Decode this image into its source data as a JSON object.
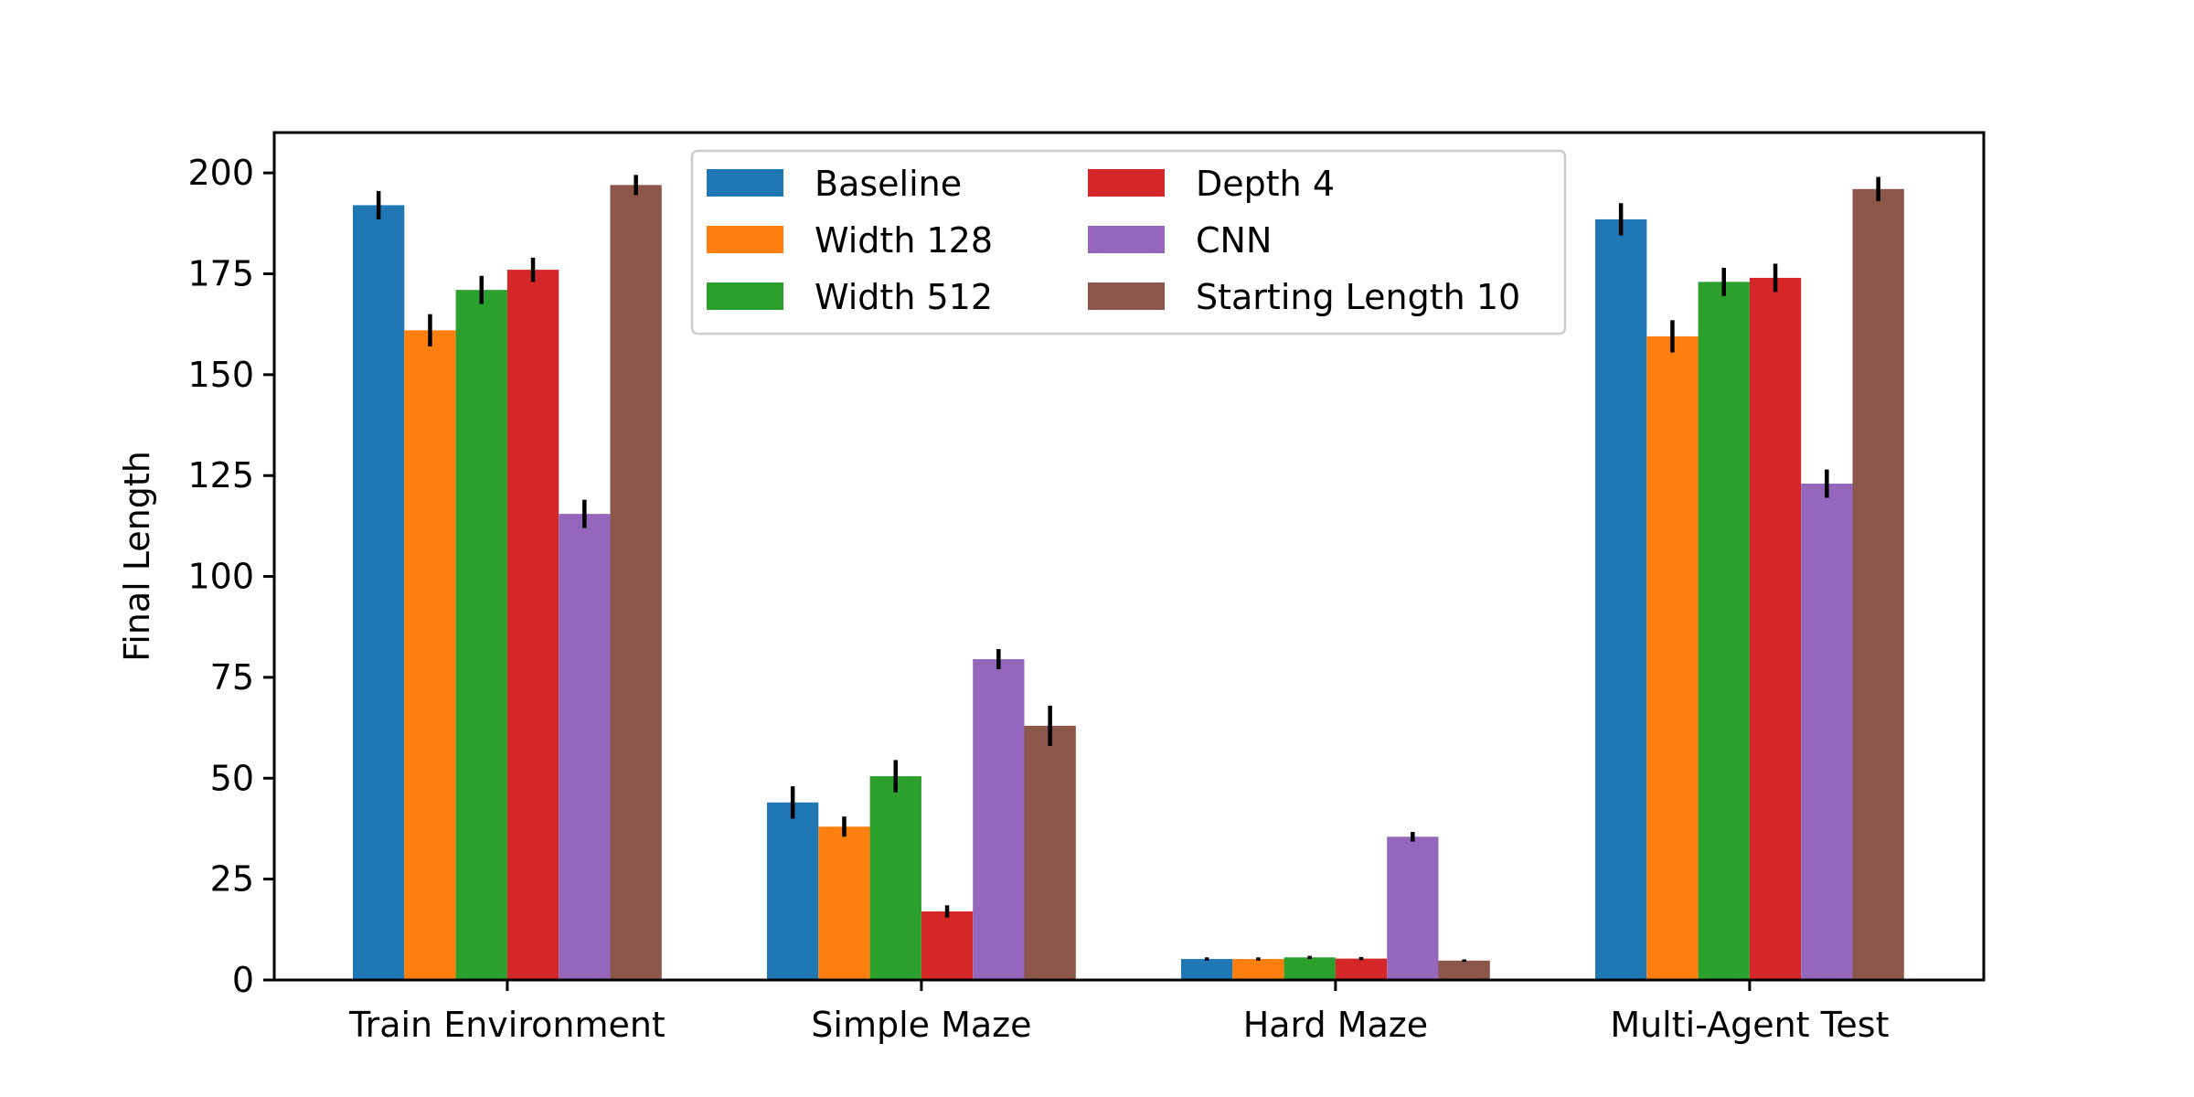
{
  "chart_data": {
    "type": "bar",
    "title": "",
    "xlabel": "",
    "ylabel": "Final Length",
    "ylim": [
      0,
      210
    ],
    "yticks": [
      0,
      25,
      50,
      75,
      100,
      125,
      150,
      175,
      200
    ],
    "grid": false,
    "legend_position": "top-center",
    "legend_columns": 2,
    "categories": [
      "Train Environment",
      "Simple Maze",
      "Hard Maze",
      "Multi-Agent Test"
    ],
    "series": [
      {
        "name": "Baseline",
        "color": "#1f77b4",
        "values": [
          192,
          44,
          5.2,
          188.5
        ],
        "errors": [
          3.5,
          4,
          0.4,
          4
        ]
      },
      {
        "name": "Width 128",
        "color": "#ff7f0e",
        "values": [
          161,
          38,
          5.2,
          159.5
        ],
        "errors": [
          4,
          2.5,
          0.4,
          4
        ]
      },
      {
        "name": "Width 512",
        "color": "#2ca02c",
        "values": [
          171,
          50.5,
          5.6,
          173
        ],
        "errors": [
          3.5,
          4,
          0.4,
          3.5
        ]
      },
      {
        "name": "Depth 4",
        "color": "#d62728",
        "values": [
          176,
          17,
          5.3,
          174
        ],
        "errors": [
          3,
          1.5,
          0.4,
          3.5
        ]
      },
      {
        "name": "CNN",
        "color": "#9467bd",
        "values": [
          115.5,
          79.5,
          35.5,
          123
        ],
        "errors": [
          3.5,
          2.5,
          1.2,
          3.5
        ]
      },
      {
        "name": "Starting Length 10",
        "color": "#8c564b",
        "values": [
          197,
          63,
          4.8,
          196
        ],
        "errors": [
          2.5,
          5,
          0.3,
          3
        ]
      }
    ]
  }
}
